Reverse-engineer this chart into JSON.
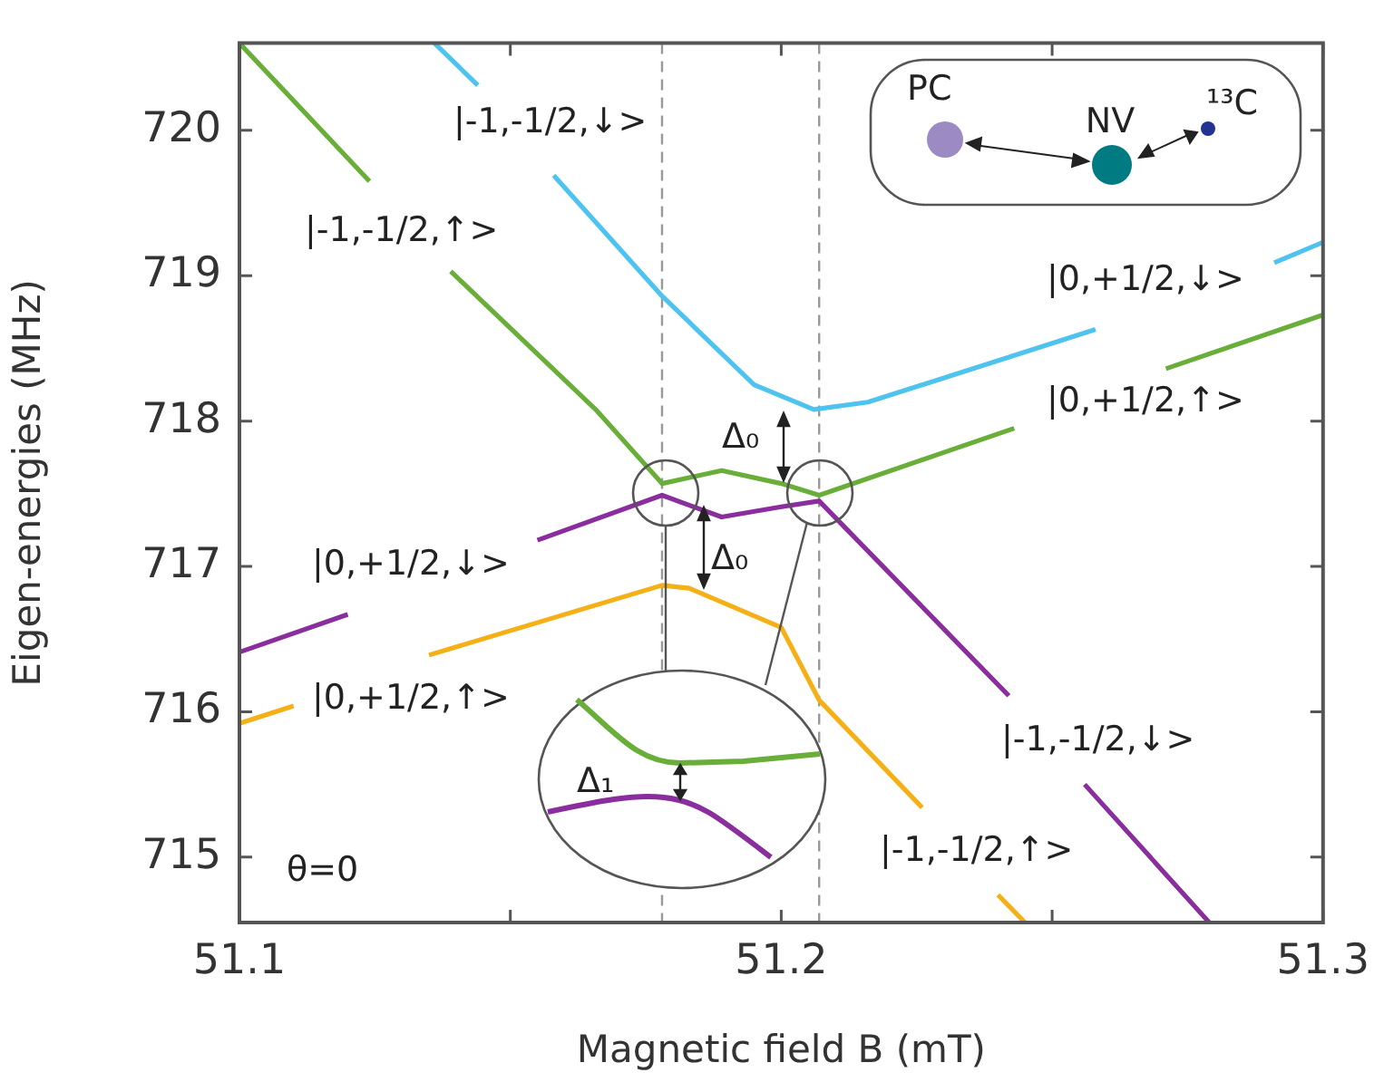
{
  "chart_data": {
    "type": "line",
    "xlabel": "Magnetic field B (mT)",
    "ylabel": "Eigen-energies (MHz)",
    "xlim": [
      51.1,
      51.3
    ],
    "xticks": [
      51.1,
      {
        "value": 51.15,
        "label": null
      },
      51.2,
      {
        "value": 51.25,
        "label": null
      },
      51.3
    ],
    "ylim": [
      714.55,
      720.6
    ],
    "yticks": [
      715,
      716,
      717,
      718,
      719,
      720
    ],
    "grid": false,
    "legend": false,
    "marker": "none",
    "line_style": "solid",
    "series": [
      {
        "color": "#6aae3a",
        "x": [
          51.1,
          51.124,
          51.131,
          51.139,
          51.166,
          51.178,
          51.189,
          51.2,
          51.207,
          51.243,
          51.257,
          51.271,
          51.3
        ],
        "values": [
          720.6,
          719.65,
          null,
          719.03,
          718.07,
          717.57,
          717.66,
          717.57,
          717.49,
          717.95,
          null,
          718.36,
          718.73
        ]
      },
      {
        "color": "#4fc3ef",
        "x": [
          51.136,
          51.144,
          51.151,
          51.158,
          51.178,
          51.195,
          51.206,
          51.216,
          51.258,
          51.275,
          51.291,
          51.3
        ],
        "values": [
          720.6,
          720.31,
          null,
          719.69,
          718.86,
          718.25,
          718.08,
          718.13,
          718.63,
          null,
          719.09,
          719.23
        ]
      },
      {
        "color": "#8a2e9e",
        "x": [
          51.1,
          51.12,
          51.138,
          51.155,
          51.178,
          51.189,
          51.2,
          51.207,
          51.242,
          51.249,
          51.256,
          51.279
        ],
        "values": [
          716.41,
          716.67,
          null,
          717.18,
          717.49,
          717.34,
          717.41,
          717.45,
          716.11,
          null,
          715.5,
          714.55
        ]
      },
      {
        "color": "#f5b017",
        "x": [
          51.1,
          51.11,
          51.123,
          51.135,
          51.178,
          51.183,
          51.2,
          51.207,
          51.226,
          51.233,
          51.24,
          51.245
        ],
        "values": [
          715.92,
          716.04,
          null,
          716.39,
          716.87,
          716.85,
          716.58,
          716.08,
          715.34,
          null,
          714.74,
          714.55
        ]
      }
    ],
    "ref_lines": [
      {
        "axis": "x",
        "value": 51.178,
        "color": "#999999",
        "line_style": "dashed"
      },
      {
        "axis": "x",
        "value": 51.207,
        "color": "#999999",
        "line_style": "dashed"
      }
    ],
    "annotations": [
      "|-1,-1/2,↓>",
      "|-1,-1/2,↑>",
      "|0,+1/2,↓>",
      "|0,+1/2,↑>",
      "|0,+1/2,↓>",
      "|0,+1/2,↑>",
      "|-1,-1/2,↓>",
      "|-1,-1/2,↑>",
      "Δ₀",
      "Δ₀",
      "Δ₁",
      "θ=0",
      "PC",
      "NV",
      "¹³C"
    ]
  }
}
